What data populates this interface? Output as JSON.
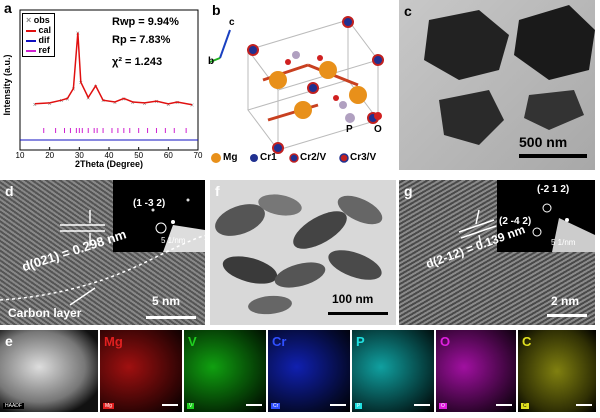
{
  "panel_a": {
    "label": "a",
    "legend": [
      "obs",
      "cal",
      "dif",
      "ref"
    ],
    "stats": {
      "rwp": "Rwp = 9.94%",
      "rp": "Rp = 7.83%",
      "chi": "χ² = 1.243"
    },
    "xlabel": "2Theta (Degree)",
    "ylabel": "Intensity (a.u.)",
    "xticks": [
      "10",
      "20",
      "30",
      "40",
      "50",
      "60",
      "70"
    ]
  },
  "chart_data": {
    "type": "line",
    "xlabel": "2Theta (Degree)",
    "ylabel": "Intensity (a.u.)",
    "xlim": [
      10,
      70
    ],
    "legend": "top-left",
    "series": [
      {
        "name": "obs",
        "x": [
          15,
          20,
          24,
          26,
          28,
          29.5,
          30.5,
          33,
          35.5,
          38,
          42,
          45,
          48,
          52,
          56,
          60,
          63,
          68
        ],
        "y": [
          0.18,
          0.19,
          0.22,
          0.24,
          0.35,
          0.97,
          0.42,
          0.25,
          0.38,
          0.22,
          0.2,
          0.24,
          0.2,
          0.19,
          0.21,
          0.18,
          0.2,
          0.17
        ]
      },
      {
        "name": "cal",
        "x": [
          15,
          20,
          24,
          26,
          28,
          29.5,
          30.5,
          33,
          35.5,
          38,
          42,
          45,
          48,
          52,
          56,
          60,
          63,
          68
        ],
        "y": [
          0.18,
          0.19,
          0.22,
          0.24,
          0.35,
          0.97,
          0.42,
          0.25,
          0.38,
          0.22,
          0.2,
          0.24,
          0.2,
          0.19,
          0.21,
          0.18,
          0.2,
          0.17
        ]
      },
      {
        "name": "dif",
        "x": [
          10,
          20,
          30,
          40,
          50,
          60,
          70
        ],
        "y": [
          0,
          0,
          0,
          0,
          0,
          0,
          0
        ]
      },
      {
        "name": "ref",
        "x": [
          18,
          22,
          25,
          27,
          29,
          30,
          31,
          33,
          35,
          36,
          38,
          41,
          43,
          45,
          47,
          50,
          53,
          56,
          59,
          62,
          66
        ],
        "y": [
          1,
          1,
          1,
          1,
          1,
          1,
          1,
          1,
          1,
          1,
          1,
          1,
          1,
          1,
          1,
          1,
          1,
          1,
          1,
          1,
          1
        ]
      }
    ]
  },
  "panel_b": {
    "label": "b",
    "axes": {
      "b": "b",
      "c": "c"
    },
    "atoms": {
      "p": "P",
      "o": "O"
    },
    "legend": [
      "Mg",
      "Cr1",
      "Cr2/V",
      "Cr3/V"
    ]
  },
  "panel_c": {
    "label": "c",
    "scale": "500 nm"
  },
  "panel_d": {
    "label": "d",
    "plane": "d(021) = 0.298 nm",
    "carbon": "Carbon layer",
    "saed": "(1 -3 2)",
    "saed_scale": "5 1/nm",
    "scale": "5 nm"
  },
  "panel_f": {
    "label": "f",
    "scale": "100 nm"
  },
  "panel_g": {
    "label": "g",
    "plane": "d(2-12) = 0.139 nm",
    "saed1": "(-2 1 2)",
    "saed2": "(2 -4 2)",
    "saed_scale": "5 1/nm",
    "scale": "2 nm"
  },
  "panel_e": {
    "label": "e",
    "maps": [
      {
        "title": "HAADF",
        "color": "#ffffff"
      },
      {
        "title": "Mg",
        "color": "#e02020"
      },
      {
        "title": "V",
        "color": "#20d020"
      },
      {
        "title": "Cr",
        "color": "#3050ff"
      },
      {
        "title": "P",
        "color": "#20e0e0"
      },
      {
        "title": "O",
        "color": "#e020e0"
      },
      {
        "title": "C",
        "color": "#e0e020"
      }
    ]
  }
}
